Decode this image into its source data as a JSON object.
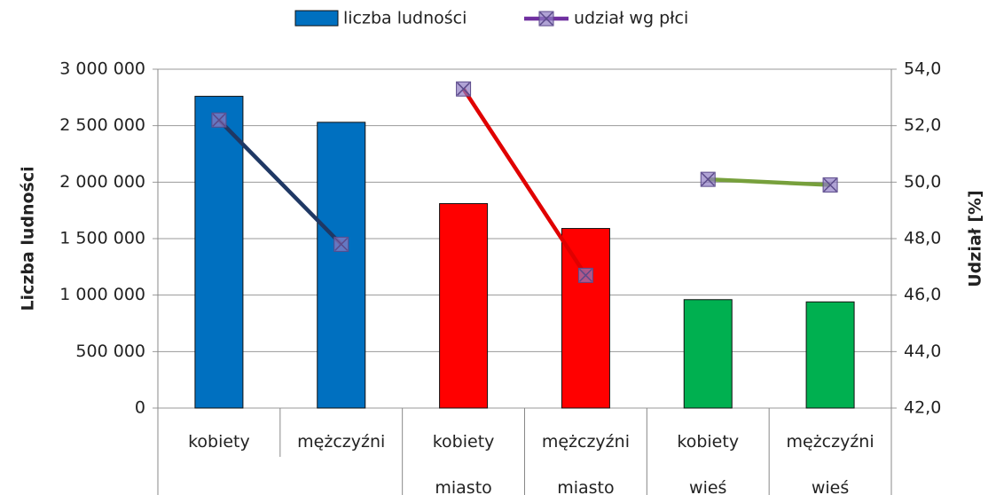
{
  "chart_data": {
    "type": "bar",
    "categories": [
      "kobiety",
      "mężczyźni",
      "kobiety miasto",
      "mężczyźni miasto",
      "kobiety wieś",
      "mężczyźni wieś"
    ],
    "ylabel": "Liczba ludności",
    "y2label": "Udział [%]",
    "ylim": [
      0,
      3000000
    ],
    "yticks": [
      {
        "value": 0,
        "label": "0"
      },
      {
        "value": 500000,
        "label": "500 000"
      },
      {
        "value": 1000000,
        "label": "1 000 000"
      },
      {
        "value": 1500000,
        "label": "1 500 000"
      },
      {
        "value": 2000000,
        "label": "2 000 000"
      },
      {
        "value": 2500000,
        "label": "2 500 000"
      },
      {
        "value": 3000000,
        "label": "3 000 000"
      }
    ],
    "y2lim": [
      42,
      54
    ],
    "y2ticks": [
      {
        "value": 42,
        "label": "42,0"
      },
      {
        "value": 44,
        "label": "44,0"
      },
      {
        "value": 46,
        "label": "46,0"
      },
      {
        "value": 48,
        "label": "48,0"
      },
      {
        "value": 50,
        "label": "50,0"
      },
      {
        "value": 52,
        "label": "52,0"
      },
      {
        "value": 54,
        "label": "54,0"
      }
    ],
    "grid": true,
    "legend": "top",
    "series": [
      {
        "name": "liczba ludności",
        "type": "bar",
        "color": "#0070c0",
        "colors": [
          "#0070c0",
          "#0070c0",
          "#ff0000",
          "#ff0000",
          "#00b050",
          "#00b050"
        ],
        "values": [
          2760000,
          2530000,
          1810000,
          1590000,
          960000,
          940000
        ]
      },
      {
        "name": "udział wg płci",
        "type": "line",
        "axis": "y2",
        "color": "#7030a0",
        "segment_colors": [
          "#1f3864",
          "#e00000",
          "#77a03c"
        ],
        "values": [
          52.2,
          47.8,
          53.3,
          46.7,
          50.1,
          49.9
        ]
      }
    ]
  }
}
